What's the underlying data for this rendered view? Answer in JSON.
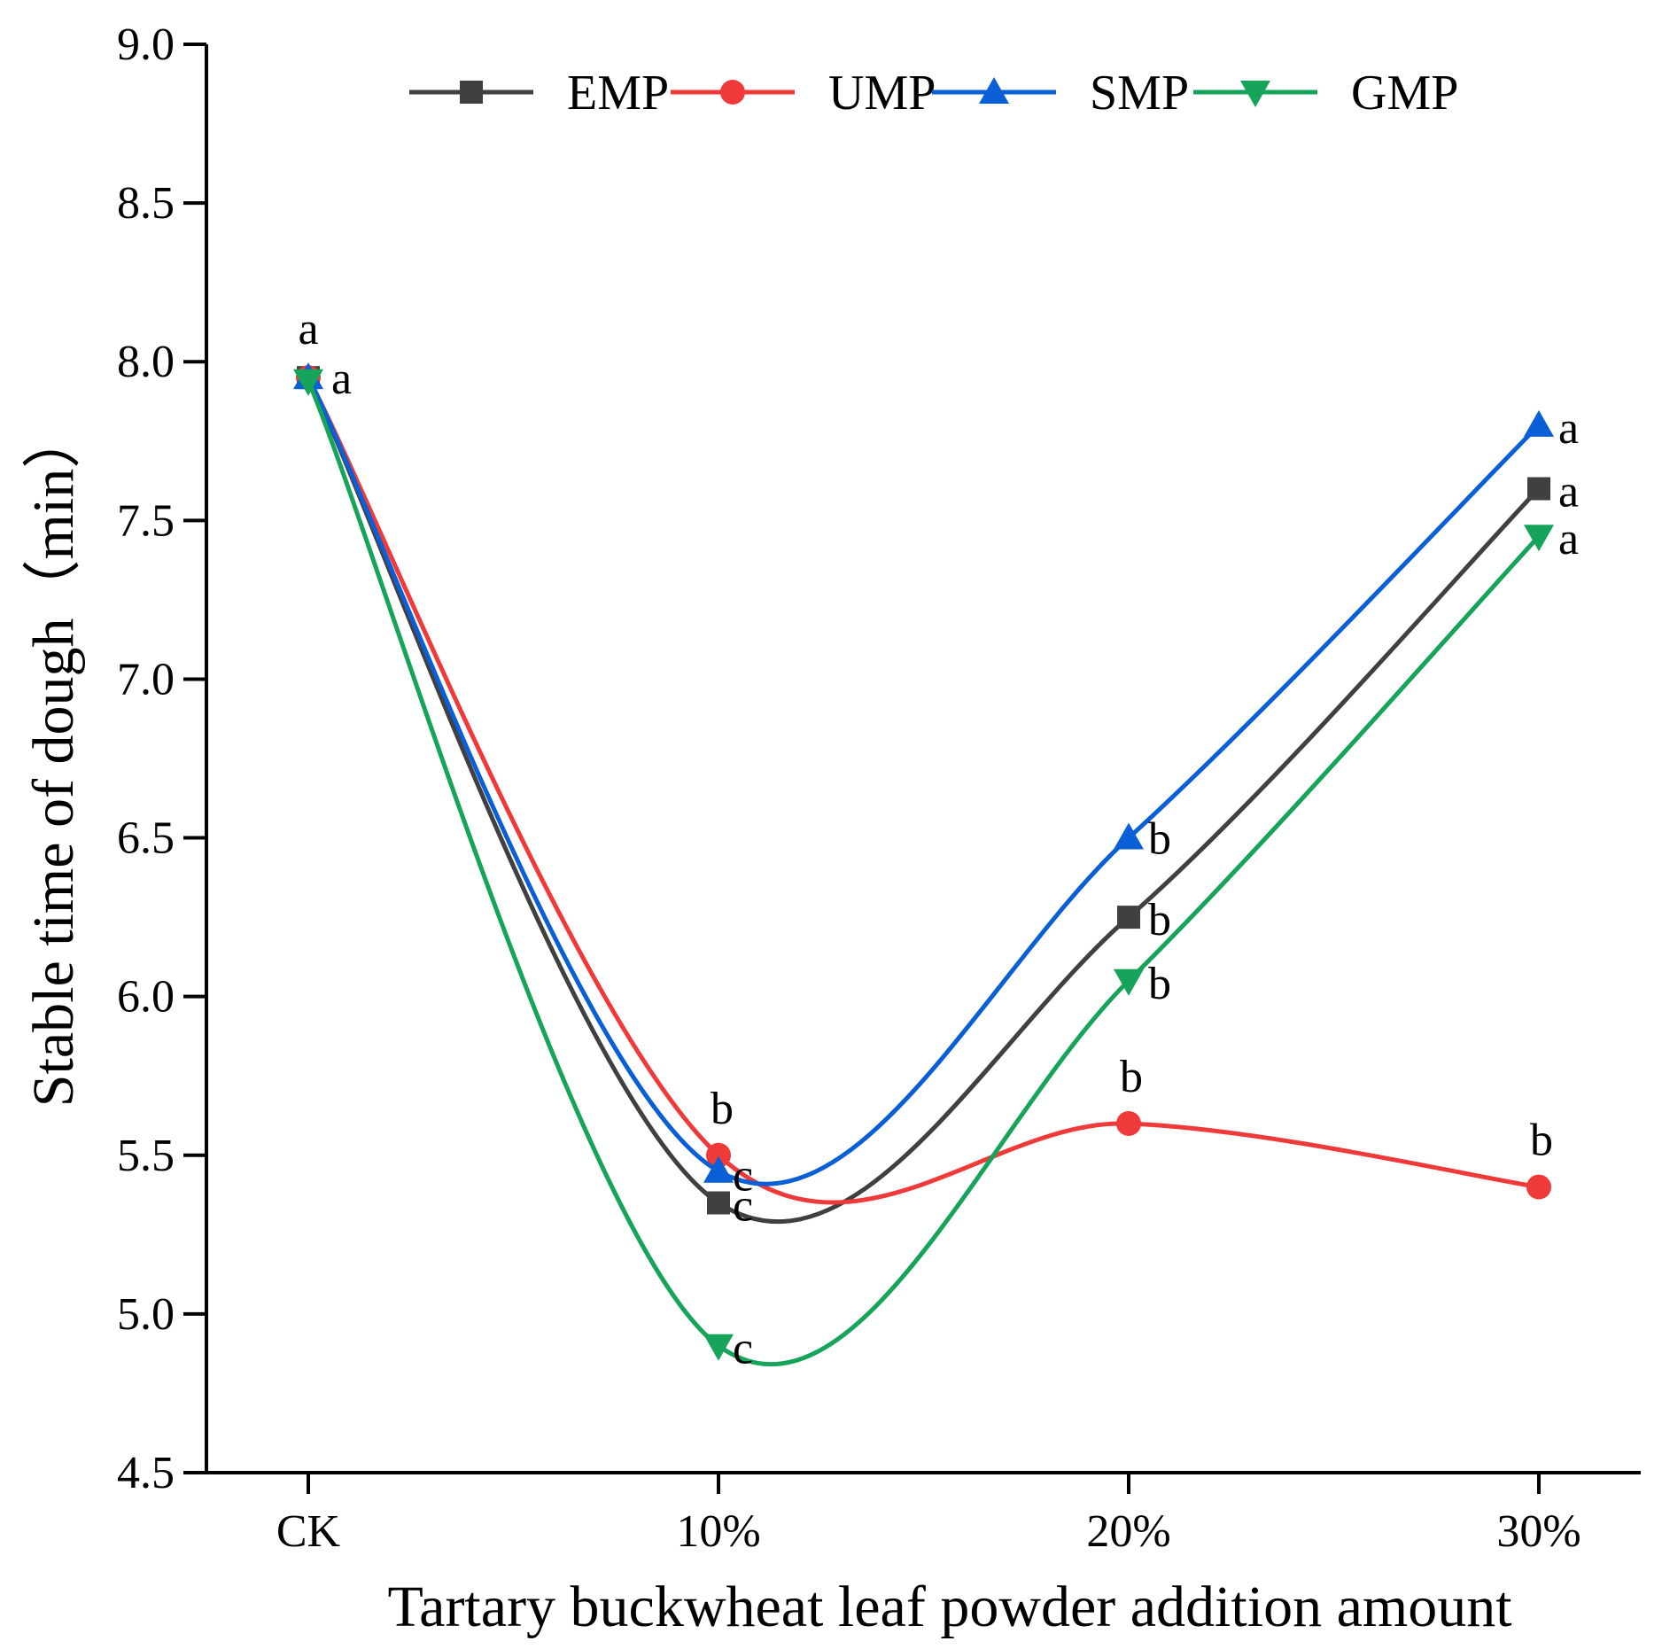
{
  "chart_data": {
    "type": "line",
    "title": "",
    "xlabel": "Tartary buckwheat leaf powder addition amount",
    "ylabel": "Stable time of dough（min）",
    "categories": [
      "CK",
      "10%",
      "20%",
      "30%"
    ],
    "ylim": [
      4.5,
      9.0
    ],
    "yticks": [
      "4.5",
      "5.0",
      "5.5",
      "6.0",
      "6.5",
      "7.0",
      "7.5",
      "8.0",
      "8.5",
      "9.0"
    ],
    "grid": false,
    "legend_position": "top",
    "series": [
      {
        "name": "EMP",
        "color": "#404040",
        "marker": "square",
        "values": [
          7.95,
          5.35,
          6.25,
          7.6
        ],
        "labels": [
          "a",
          "c",
          "b",
          "a"
        ]
      },
      {
        "name": "UMP",
        "color": "#f03a3a",
        "marker": "circle",
        "values": [
          7.95,
          5.5,
          5.6,
          5.4
        ],
        "labels": [
          "a",
          "b",
          "b",
          "b"
        ]
      },
      {
        "name": "SMP",
        "color": "#0a5fd6",
        "marker": "triangle-up",
        "values": [
          7.95,
          5.45,
          6.5,
          7.8
        ],
        "labels": [
          "a",
          "c",
          "b",
          "a"
        ]
      },
      {
        "name": "GMP",
        "color": "#16a35a",
        "marker": "triangle-down",
        "values": [
          7.94,
          4.9,
          6.05,
          7.45
        ],
        "labels": [
          "a",
          "c",
          "b",
          "a"
        ]
      }
    ]
  }
}
